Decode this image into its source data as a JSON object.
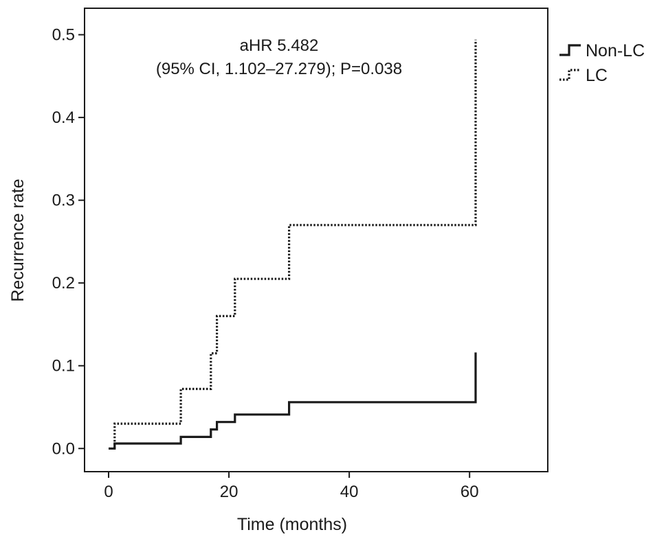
{
  "chart_data": {
    "type": "line",
    "subtype": "step",
    "xlabel": "Time (months)",
    "ylabel": "Recurrence rate",
    "xlim": [
      -4,
      73
    ],
    "ylim": [
      -0.028,
      0.532
    ],
    "x_ticks": [
      0,
      20,
      40,
      60
    ],
    "x_tick_labels": [
      "0",
      "20",
      "40",
      "60"
    ],
    "y_ticks": [
      0.0,
      0.1,
      0.2,
      0.3,
      0.4,
      0.5
    ],
    "y_tick_labels": [
      "0.0",
      "0.1",
      "0.2",
      "0.3",
      "0.4",
      "0.5"
    ],
    "grid": false,
    "legend_position": "right-outside-top",
    "annotation": {
      "line1": "aHR 5.482",
      "line2": "(95% CI, 1.102–27.279); P=0.038"
    },
    "series": [
      {
        "name": "Non-LC",
        "style": "solid",
        "color": "#1a1a1a",
        "points": [
          [
            0,
            0
          ],
          [
            1,
            0
          ],
          [
            1,
            0.006
          ],
          [
            12,
            0.006
          ],
          [
            12,
            0.014
          ],
          [
            17,
            0.014
          ],
          [
            17,
            0.023
          ],
          [
            18,
            0.023
          ],
          [
            18,
            0.032
          ],
          [
            21,
            0.032
          ],
          [
            21,
            0.041
          ],
          [
            30,
            0.041
          ],
          [
            30,
            0.056
          ],
          [
            61,
            0.056
          ],
          [
            61,
            0.116
          ]
        ]
      },
      {
        "name": "LC",
        "style": "dotted",
        "color": "#1a1a1a",
        "points": [
          [
            1,
            0.0
          ],
          [
            1,
            0.03
          ],
          [
            12,
            0.03
          ],
          [
            12,
            0.072
          ],
          [
            17,
            0.072
          ],
          [
            17,
            0.115
          ],
          [
            18,
            0.115
          ],
          [
            18,
            0.16
          ],
          [
            21,
            0.16
          ],
          [
            21,
            0.205
          ],
          [
            30,
            0.205
          ],
          [
            30,
            0.27
          ],
          [
            61,
            0.27
          ],
          [
            61,
            0.494
          ]
        ]
      }
    ]
  }
}
